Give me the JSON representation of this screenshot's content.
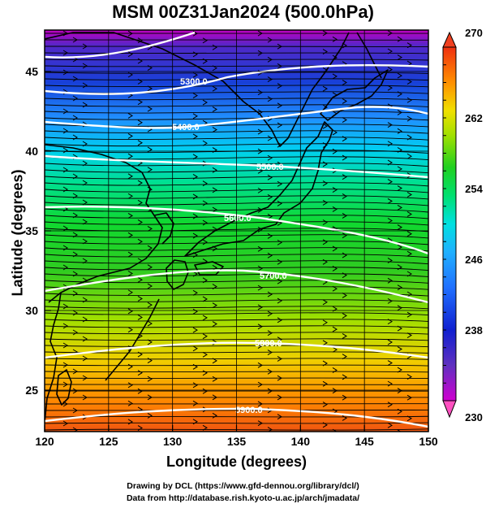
{
  "title": "MSM 00Z31Jan2024 (500.0hPa)",
  "xlabel": "Longitude (degrees)",
  "ylabel": "Latitude  (degrees)",
  "x_ticks": [
    "120",
    "125",
    "130",
    "135",
    "140",
    "145",
    "150"
  ],
  "y_ticks": [
    "25",
    "30",
    "35",
    "40",
    "45"
  ],
  "colorbar": {
    "min": 230,
    "max": 270,
    "labels": [
      "270",
      "262",
      "254",
      "246",
      "238",
      "230"
    ]
  },
  "contours": [
    {
      "label": "5300.0"
    },
    {
      "label": "5400.0"
    },
    {
      "label": "5500.0"
    },
    {
      "label": "5600.0"
    },
    {
      "label": "5700.0"
    },
    {
      "label": "5800.0"
    },
    {
      "label": "5900.0"
    }
  ],
  "credits": {
    "line1": "Drawing by DCL (https://www.gfd-dennou.org/library/dcl/)",
    "line2": "Data from http://database.rish.kyoto-u.ac.jp/arch/jmadata/"
  },
  "colors": {
    "temperature_scale": [
      "#c000c0",
      "#6030c0",
      "#1020d0",
      "#2080ff",
      "#00d0f0",
      "#00e070",
      "#20d020",
      "#90e000",
      "#f0d000",
      "#ff8c00",
      "#f05010"
    ]
  },
  "chart_data": {
    "type": "map",
    "title": "MSM 00Z31Jan2024 (500.0hPa)",
    "xlabel": "Longitude (degrees)",
    "ylabel": "Latitude  (degrees)",
    "xlim": [
      120,
      150
    ],
    "ylim": [
      22.4,
      47.6
    ],
    "colorbar_range": [
      230,
      270
    ],
    "geopotential_contour_levels": [
      5300,
      5400,
      5500,
      5600,
      5700,
      5800,
      5900
    ],
    "wind_vectors": "streamlines, predominantly westerly"
  }
}
